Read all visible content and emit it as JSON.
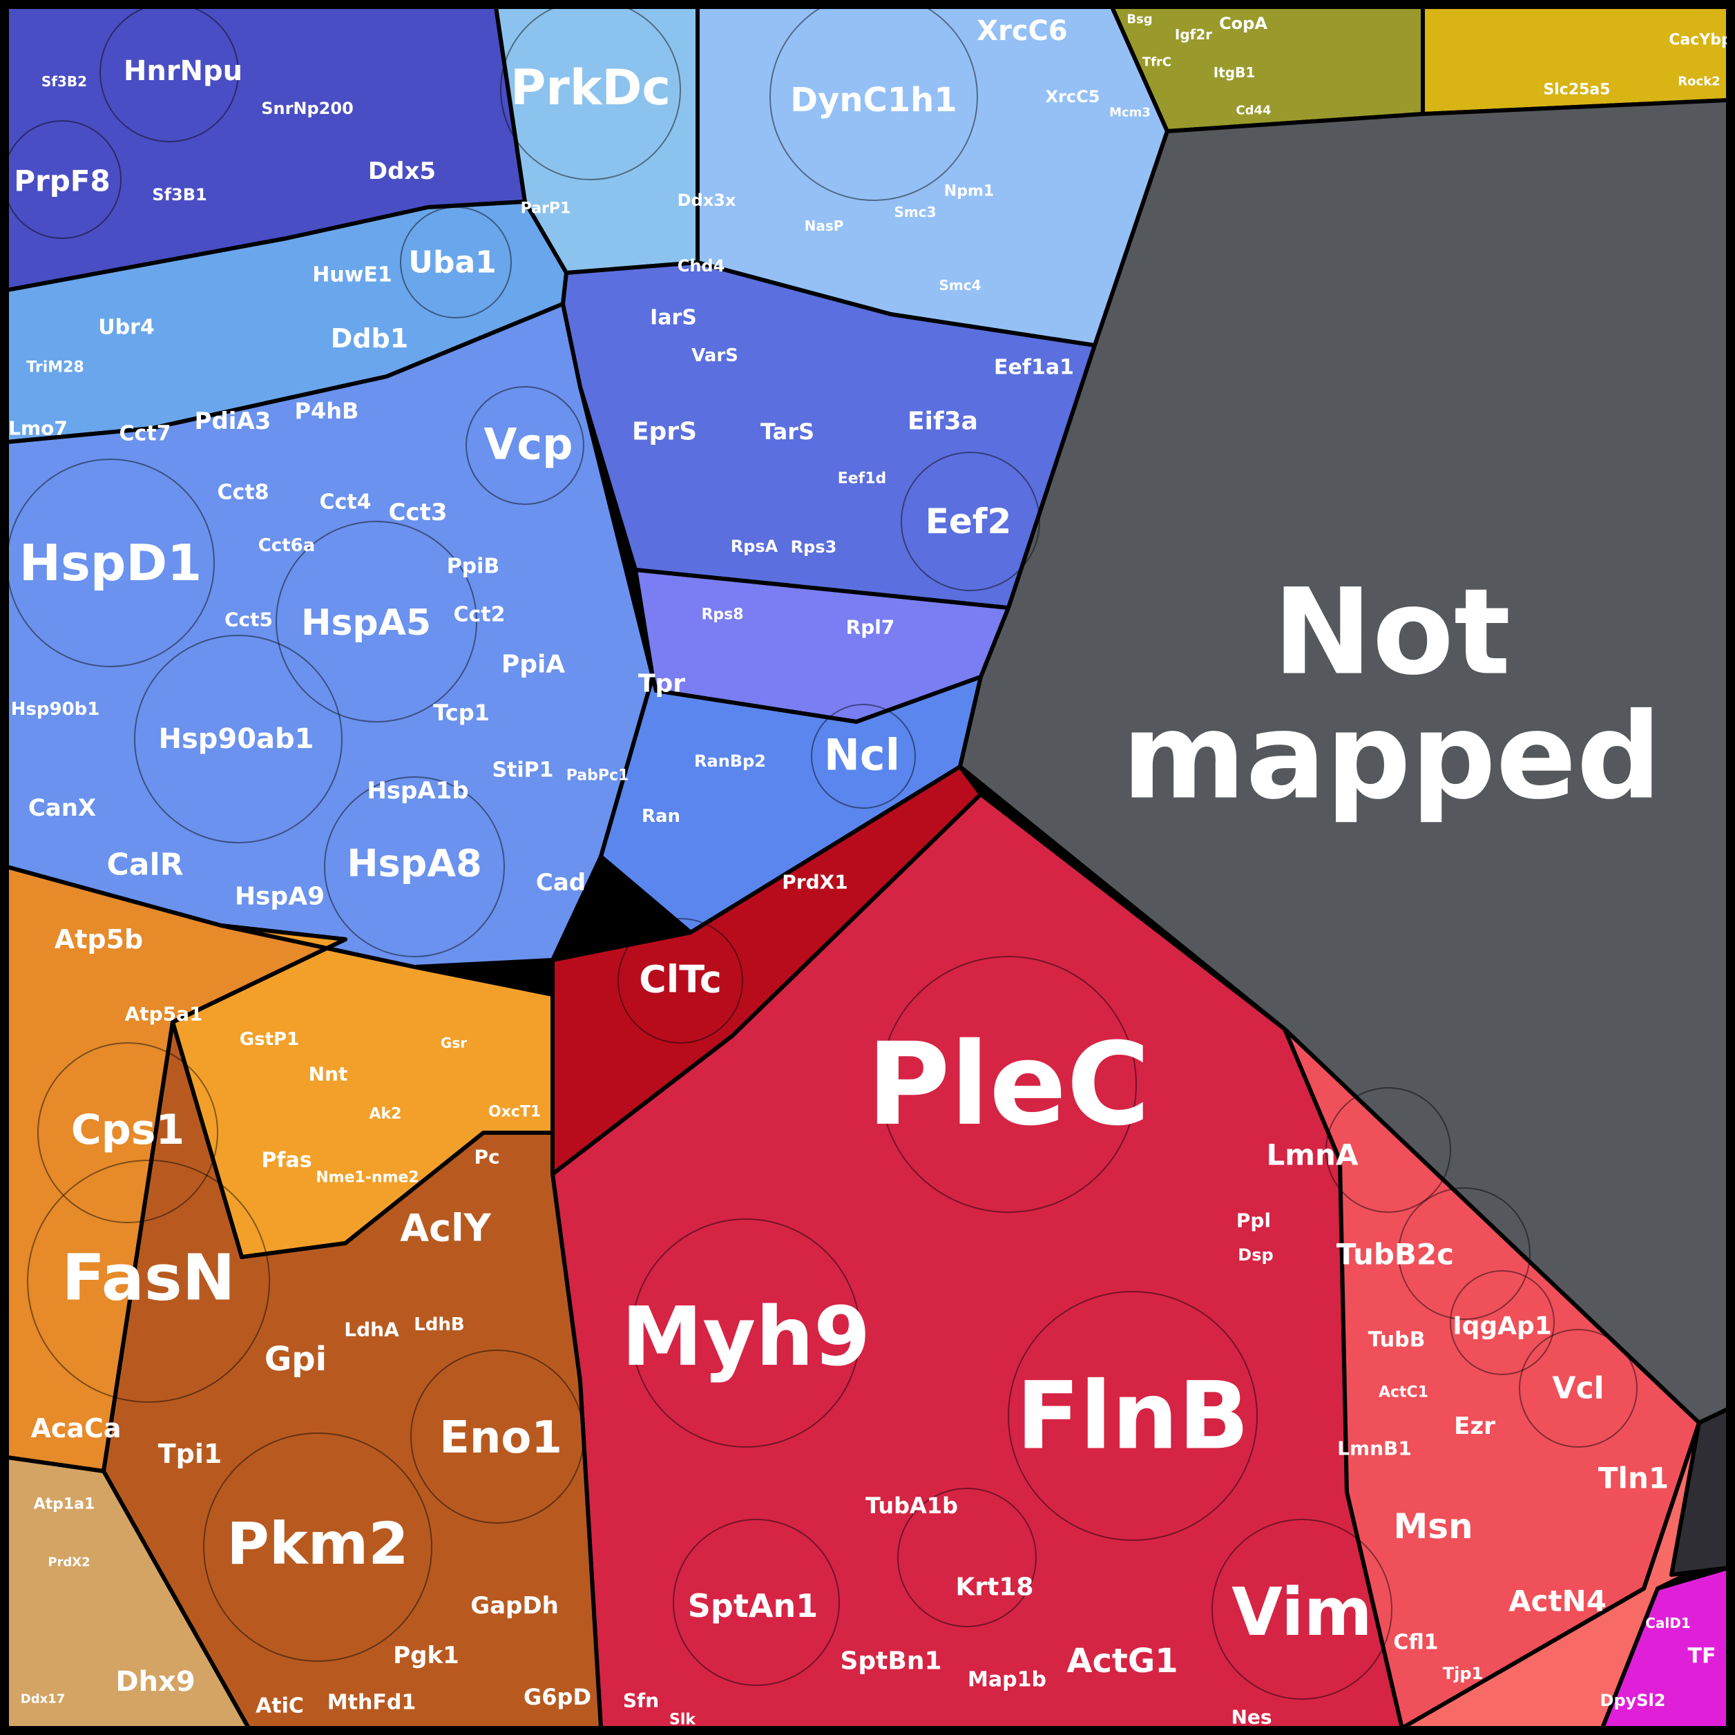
{
  "colors": {
    "splicing": "#4a4ec4",
    "dna_replication": "#8cc3ee",
    "dna_light": "#94c0f6",
    "chaperones": "#6a92ee",
    "proteasome": "#6aa6ec",
    "translation": "#5b6fde",
    "ribosome": "#7a7ef2",
    "nucleus": "#5a86ee",
    "adhesion_green": "#9a9a2c",
    "adhesion_yellow": "#d8b414",
    "not_mapped": "#55585c",
    "red_small": "#b80c1c",
    "cytoskeleton": "#d62444",
    "cytoskeleton_light": "#ea2a4a",
    "actin_binding": "#f0505a",
    "coral": "#f86a66",
    "metabolism_orange": "#e68a2a",
    "metabolism_light": "#f2a02a",
    "glycolysis": "#b85a20",
    "tan": "#d4a464",
    "magenta": "#e020d8",
    "dark": "#2e2e34"
  },
  "not_mapped": {
    "line1": "Not",
    "line2": "mapped"
  },
  "labels": [
    {
      "name": "PleC",
      "group": "red"
    },
    {
      "name": "FlnB",
      "group": "red"
    },
    {
      "name": "Myh9",
      "group": "red"
    },
    {
      "name": "Vim",
      "group": "red"
    },
    {
      "name": "SptAn1",
      "group": "red"
    },
    {
      "name": "ActG1",
      "group": "red"
    },
    {
      "name": "LmnA",
      "group": "red"
    },
    {
      "name": "TubB2c",
      "group": "red"
    },
    {
      "name": "IqgAp1",
      "group": "red"
    },
    {
      "name": "Vcl",
      "group": "red"
    },
    {
      "name": "Tln1",
      "group": "red"
    },
    {
      "name": "ActN4",
      "group": "red"
    },
    {
      "name": "Msn",
      "group": "red"
    },
    {
      "name": "Ezr",
      "group": "red"
    },
    {
      "name": "TubA1b",
      "group": "red"
    },
    {
      "name": "Krt18",
      "group": "red"
    },
    {
      "name": "SptBn1",
      "group": "red"
    },
    {
      "name": "Map1b",
      "group": "red"
    },
    {
      "name": "ClTc",
      "group": "red"
    },
    {
      "name": "PrdX1",
      "group": "red"
    },
    {
      "name": "TubB",
      "group": "red"
    },
    {
      "name": "LmnB1",
      "group": "red"
    },
    {
      "name": "Cfl1",
      "group": "red"
    },
    {
      "name": "Ppl",
      "group": "red"
    },
    {
      "name": "Dsp",
      "group": "red"
    },
    {
      "name": "ActC1",
      "group": "red"
    },
    {
      "name": "Nes",
      "group": "red"
    },
    {
      "name": "Tjp1",
      "group": "red"
    },
    {
      "name": "Sfn",
      "group": "red"
    },
    {
      "name": "Slk",
      "group": "red"
    },
    {
      "name": "HspD1",
      "group": "blue"
    },
    {
      "name": "HspA5",
      "group": "blue"
    },
    {
      "name": "Hsp90ab1",
      "group": "blue"
    },
    {
      "name": "HspA8",
      "group": "blue"
    },
    {
      "name": "HspA1b",
      "group": "blue"
    },
    {
      "name": "HspA9",
      "group": "blue"
    },
    {
      "name": "CalR",
      "group": "blue"
    },
    {
      "name": "CanX",
      "group": "blue"
    },
    {
      "name": "Hsp90b1",
      "group": "blue"
    },
    {
      "name": "PdiA3",
      "group": "blue"
    },
    {
      "name": "P4hB",
      "group": "blue"
    },
    {
      "name": "Cct7",
      "group": "blue"
    },
    {
      "name": "Cct8",
      "group": "blue"
    },
    {
      "name": "Cct4",
      "group": "blue"
    },
    {
      "name": "Cct3",
      "group": "blue"
    },
    {
      "name": "Cct6a",
      "group": "blue"
    },
    {
      "name": "Cct5",
      "group": "blue"
    },
    {
      "name": "Cct2",
      "group": "blue"
    },
    {
      "name": "PpiB",
      "group": "blue"
    },
    {
      "name": "PpiA",
      "group": "blue"
    },
    {
      "name": "Tcp1",
      "group": "blue"
    },
    {
      "name": "StiP1",
      "group": "blue"
    },
    {
      "name": "Vcp",
      "group": "blue"
    },
    {
      "name": "Uba1",
      "group": "blue"
    },
    {
      "name": "HuwE1",
      "group": "blue"
    },
    {
      "name": "Ddb1",
      "group": "blue"
    },
    {
      "name": "Ubr4",
      "group": "blue"
    },
    {
      "name": "TriM28",
      "group": "blue"
    },
    {
      "name": "Lmo7",
      "group": "blue"
    },
    {
      "name": "Cad",
      "group": "blue"
    },
    {
      "name": "PabPc1",
      "group": "blue"
    },
    {
      "name": "HnrNpu",
      "group": "blue"
    },
    {
      "name": "PrpF8",
      "group": "blue"
    },
    {
      "name": "Ddx5",
      "group": "blue"
    },
    {
      "name": "SnrNp200",
      "group": "blue"
    },
    {
      "name": "Sf3B1",
      "group": "blue"
    },
    {
      "name": "Sf3B2",
      "group": "blue"
    },
    {
      "name": "PrkDc",
      "group": "blue"
    },
    {
      "name": "DynC1h1",
      "group": "blue"
    },
    {
      "name": "XrcC6",
      "group": "blue"
    },
    {
      "name": "XrcC5",
      "group": "blue"
    },
    {
      "name": "Mcm3",
      "group": "blue"
    },
    {
      "name": "Ddx3x",
      "group": "blue"
    },
    {
      "name": "Chd4",
      "group": "blue"
    },
    {
      "name": "NasP",
      "group": "blue"
    },
    {
      "name": "Npm1",
      "group": "blue"
    },
    {
      "name": "Smc4",
      "group": "blue"
    },
    {
      "name": "Smc3",
      "group": "blue"
    },
    {
      "name": "ParP1",
      "group": "blue"
    },
    {
      "name": "IarS",
      "group": "blue"
    },
    {
      "name": "EprS",
      "group": "blue"
    },
    {
      "name": "VarS",
      "group": "blue"
    },
    {
      "name": "TarS",
      "group": "blue"
    },
    {
      "name": "Eif3a",
      "group": "blue"
    },
    {
      "name": "Eef1a1",
      "group": "blue"
    },
    {
      "name": "Eef2",
      "group": "blue"
    },
    {
      "name": "Eef1d",
      "group": "blue"
    },
    {
      "name": "RpsA",
      "group": "blue"
    },
    {
      "name": "Rps3",
      "group": "blue"
    },
    {
      "name": "Rps8",
      "group": "blue"
    },
    {
      "name": "Rpl7",
      "group": "blue"
    },
    {
      "name": "Tpr",
      "group": "blue"
    },
    {
      "name": "RanBp2",
      "group": "blue"
    },
    {
      "name": "Ran",
      "group": "blue"
    },
    {
      "name": "Ncl",
      "group": "blue"
    },
    {
      "name": "FasN",
      "group": "orange"
    },
    {
      "name": "Cps1",
      "group": "orange"
    },
    {
      "name": "Atp5b",
      "group": "orange"
    },
    {
      "name": "Atp5a1",
      "group": "orange"
    },
    {
      "name": "GstP1",
      "group": "orange"
    },
    {
      "name": "Nnt",
      "group": "orange"
    },
    {
      "name": "Pfas",
      "group": "orange"
    },
    {
      "name": "Nme1-nme2",
      "group": "orange"
    },
    {
      "name": "AcaCa",
      "group": "orange"
    },
    {
      "name": "Pkm2",
      "group": "orange"
    },
    {
      "name": "Eno1",
      "group": "orange"
    },
    {
      "name": "AclY",
      "group": "orange"
    },
    {
      "name": "Gpi",
      "group": "orange"
    },
    {
      "name": "Tpi1",
      "group": "orange"
    },
    {
      "name": "LdhA",
      "group": "orange"
    },
    {
      "name": "LdhB",
      "group": "orange"
    },
    {
      "name": "GapDh",
      "group": "orange"
    },
    {
      "name": "Pgk1",
      "group": "orange"
    },
    {
      "name": "G6pD",
      "group": "orange"
    },
    {
      "name": "MthFd1",
      "group": "orange"
    },
    {
      "name": "AtiC",
      "group": "orange"
    },
    {
      "name": "Dhx9",
      "group": "orange"
    },
    {
      "name": "Pc",
      "group": "orange"
    },
    {
      "name": "OxcT1",
      "group": "orange"
    },
    {
      "name": "Ak2",
      "group": "orange"
    },
    {
      "name": "Atp1a1",
      "group": "orange"
    },
    {
      "name": "PrdX2",
      "group": "orange"
    },
    {
      "name": "Ddx17",
      "group": "orange"
    },
    {
      "name": "Gsr",
      "group": "orange"
    },
    {
      "name": "CopA",
      "group": "yellow"
    },
    {
      "name": "Igf2r",
      "group": "yellow"
    },
    {
      "name": "ItgB1",
      "group": "yellow"
    },
    {
      "name": "Cd44",
      "group": "yellow"
    },
    {
      "name": "Bsg",
      "group": "yellow"
    },
    {
      "name": "TfrC",
      "group": "yellow"
    },
    {
      "name": "Slc25a5",
      "group": "yellow"
    },
    {
      "name": "CacYbp",
      "group": "yellow"
    },
    {
      "name": "Rock2",
      "group": "yellow"
    },
    {
      "name": "DpySl2",
      "group": "magenta"
    },
    {
      "name": "TF",
      "group": "magenta"
    },
    {
      "name": "CalD1",
      "group": "magenta"
    }
  ]
}
